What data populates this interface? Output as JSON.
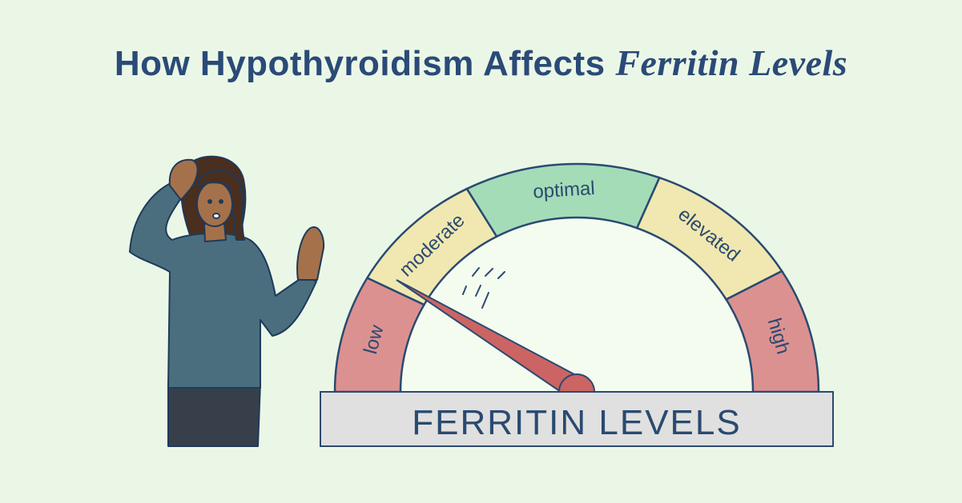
{
  "title": {
    "main": "How Hypothyroidism Affects ",
    "emphasis": "Ferritin Levels"
  },
  "gauge": {
    "label": "FERRITIN LEVELS",
    "segments": [
      {
        "label": "low",
        "color": "#dc9191"
      },
      {
        "label": "moderate",
        "color": "#f0e8b0"
      },
      {
        "label": "optimal",
        "color": "#a4dcb8"
      },
      {
        "label": "elevated",
        "color": "#f0e8b0"
      },
      {
        "label": "high",
        "color": "#dc9191"
      }
    ],
    "needle_reading": "low/moderate boundary",
    "needle_color": "#cc6464"
  },
  "illustration": {
    "subject": "worried-woman"
  },
  "colors": {
    "background": "#ebf7e6",
    "ink": "#2a4a70",
    "title": "#2a4a78"
  }
}
